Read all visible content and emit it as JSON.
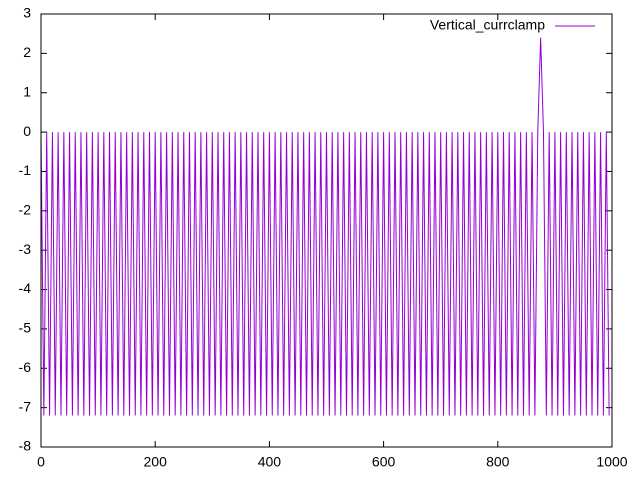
{
  "chart_data": {
    "type": "line",
    "x": [
      0,
      5,
      10,
      15,
      20,
      25,
      30,
      35,
      40,
      45,
      50,
      55,
      60,
      65,
      70,
      75,
      80,
      85,
      90,
      95,
      100,
      105,
      110,
      115,
      120,
      125,
      130,
      135,
      140,
      145,
      150,
      155,
      160,
      165,
      170,
      175,
      180,
      185,
      190,
      195,
      200,
      205,
      210,
      215,
      220,
      225,
      230,
      235,
      240,
      245,
      250,
      255,
      260,
      265,
      270,
      275,
      280,
      285,
      290,
      295,
      300,
      305,
      310,
      315,
      320,
      325,
      330,
      335,
      340,
      345,
      350,
      355,
      360,
      365,
      370,
      375,
      380,
      385,
      390,
      395,
      400,
      405,
      410,
      415,
      420,
      425,
      430,
      435,
      440,
      445,
      450,
      455,
      460,
      465,
      470,
      475,
      480,
      485,
      490,
      495,
      500,
      505,
      510,
      515,
      520,
      525,
      530,
      535,
      540,
      545,
      550,
      555,
      560,
      565,
      570,
      575,
      580,
      585,
      590,
      595,
      600,
      605,
      610,
      615,
      620,
      625,
      630,
      635,
      640,
      645,
      650,
      655,
      660,
      665,
      670,
      675,
      680,
      685,
      690,
      695,
      700,
      705,
      710,
      715,
      720,
      725,
      730,
      735,
      740,
      745,
      750,
      755,
      760,
      765,
      770,
      775,
      780,
      785,
      790,
      795,
      800,
      805,
      810,
      815,
      820,
      825,
      830,
      835,
      840,
      845,
      850,
      855,
      860,
      865,
      870,
      875,
      880,
      885,
      890,
      895,
      900,
      905,
      910,
      915,
      920,
      925,
      930,
      935,
      940,
      945,
      950,
      955,
      960,
      965,
      970,
      975,
      980,
      985,
      990,
      995
    ],
    "series": [
      {
        "name": "Vertical_currclamp",
        "color": "#9400d3",
        "values": [
          0,
          -7.2,
          0,
          -7.2,
          0,
          -7.2,
          0,
          -7.2,
          0,
          -7.2,
          0,
          -7.2,
          0,
          -7.2,
          0,
          -7.2,
          0,
          -7.2,
          0,
          -7.2,
          0,
          -7.2,
          0,
          -7.2,
          0,
          -7.2,
          0,
          -7.2,
          0,
          -7.2,
          0,
          -7.2,
          0,
          -7.2,
          0,
          -7.2,
          0,
          -7.2,
          0,
          -7.2,
          0,
          -7.2,
          0,
          -7.2,
          0,
          -7.2,
          0,
          -7.2,
          0,
          -7.2,
          0,
          -7.2,
          0,
          -7.2,
          0,
          -7.2,
          0,
          -7.2,
          0,
          -7.2,
          0,
          -7.2,
          0,
          -7.2,
          0,
          -7.2,
          0,
          -7.2,
          0,
          -7.2,
          0,
          -7.2,
          0,
          -7.2,
          0,
          -7.2,
          0,
          -7.2,
          0,
          -7.2,
          0,
          -7.2,
          0,
          -7.2,
          0,
          -7.2,
          0,
          -7.2,
          0,
          -7.2,
          0,
          -7.2,
          0,
          -7.2,
          0,
          -7.2,
          0,
          -7.2,
          0,
          -7.2,
          0,
          -7.2,
          0,
          -7.2,
          0,
          -7.2,
          0,
          -7.2,
          0,
          -7.2,
          0,
          -7.2,
          0,
          -7.2,
          0,
          -7.2,
          0,
          -7.2,
          0,
          -7.2,
          0,
          -7.2,
          0,
          -7.2,
          0,
          -7.2,
          0,
          -7.2,
          0,
          -7.2,
          0,
          -7.2,
          0,
          -7.2,
          0,
          -7.2,
          0,
          -7.2,
          0,
          -7.2,
          0,
          -7.2,
          0,
          -7.2,
          0,
          -7.2,
          0,
          -7.2,
          0,
          -7.2,
          0,
          -7.2,
          0,
          -7.2,
          0,
          -7.2,
          0,
          -7.2,
          0,
          -7.2,
          0,
          -7.2,
          0,
          -7.2,
          0,
          -7.2,
          0,
          -7.2,
          0,
          -7.2,
          0,
          -7.2,
          0,
          -7.2,
          0,
          2.4,
          0,
          -7.2,
          0,
          -7.2,
          0,
          -7.2,
          0,
          -7.2,
          0,
          -7.2,
          0,
          -7.2,
          0,
          -7.2,
          0,
          -7.2,
          0,
          -7.2,
          0,
          -7.2,
          0,
          -7.2,
          0,
          -7.2
        ]
      }
    ],
    "xlim": [
      0,
      1000
    ],
    "xticks": [
      0,
      200,
      400,
      600,
      800,
      1000
    ],
    "ylim": [
      -8,
      3
    ],
    "yticks": [
      -8,
      -7,
      -6,
      -5,
      -4,
      -3,
      -2,
      -1,
      0,
      1,
      2,
      3
    ],
    "legend": "top-right"
  }
}
